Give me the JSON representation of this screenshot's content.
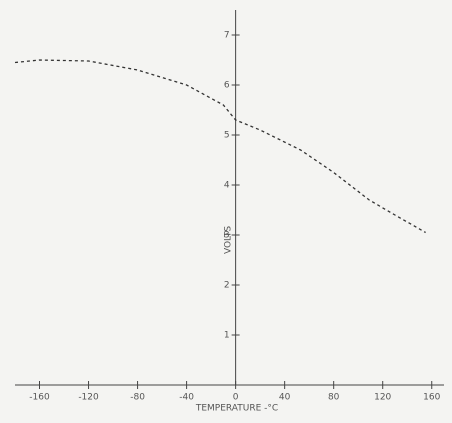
{
  "chart_data": {
    "type": "line",
    "x_label": "TEMPERATURE -°C",
    "y_label": "VOLTS",
    "x": [
      -180,
      -160,
      -120,
      -80,
      -40,
      -10,
      0,
      20,
      53,
      80,
      109,
      130,
      155
    ],
    "series": [
      {
        "color": "#333333",
        "values": [
          6.45,
          6.5,
          6.48,
          6.3,
          6.0,
          5.6,
          5.3,
          5.1,
          4.7,
          4.25,
          3.7,
          3.4,
          3.05
        ]
      }
    ],
    "xlim": [
      -180,
      170
    ],
    "ylim": [
      0,
      7.5
    ],
    "xticks": [
      -160,
      -120,
      -80,
      -40,
      0,
      40,
      80,
      120,
      160
    ],
    "yticks": [
      1,
      2,
      3,
      4,
      5,
      6,
      7
    ],
    "dashed": true
  }
}
